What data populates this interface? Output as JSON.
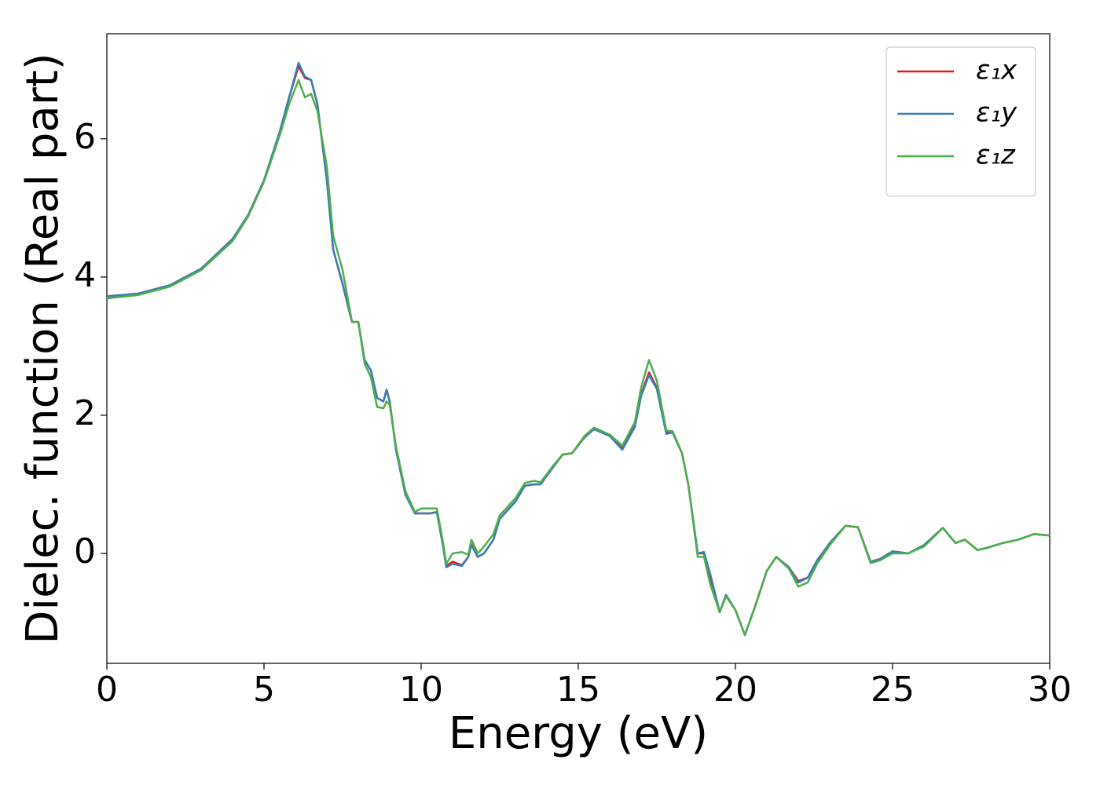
{
  "chart_data": {
    "type": "line",
    "xlabel": "Energy (eV)",
    "ylabel": "Dielec. function (Real part)",
    "x": [
      0,
      1,
      2,
      3,
      4,
      4.5,
      5,
      5.5,
      5.8,
      6.1,
      6.3,
      6.5,
      6.7,
      7.0,
      7.2,
      7.5,
      7.8,
      8.0,
      8.2,
      8.4,
      8.6,
      8.8,
      8.9,
      9.0,
      9.2,
      9.5,
      9.8,
      10.0,
      10.3,
      10.5,
      10.7,
      10.8,
      11.0,
      11.3,
      11.5,
      11.6,
      11.8,
      12.0,
      12.3,
      12.5,
      13.0,
      13.3,
      13.6,
      13.8,
      14.2,
      14.5,
      14.8,
      15.2,
      15.5,
      16.0,
      16.4,
      16.8,
      17.0,
      17.25,
      17.5,
      17.8,
      18.0,
      18.3,
      18.5,
      18.8,
      19.0,
      19.2,
      19.5,
      19.7,
      20.0,
      20.3,
      20.6,
      21.0,
      21.3,
      21.7,
      22.0,
      22.3,
      22.6,
      23.0,
      23.5,
      23.9,
      24.3,
      24.6,
      25.0,
      25.5,
      26.0,
      26.6,
      27.0,
      27.3,
      27.7,
      28.0,
      28.5,
      29.0,
      29.5,
      30.0
    ],
    "series": [
      {
        "name": "ε₁x",
        "color": "#e41a1c",
        "values": [
          3.72,
          3.76,
          3.88,
          4.12,
          4.55,
          4.9,
          5.4,
          6.1,
          6.6,
          7.05,
          6.88,
          6.85,
          6.5,
          5.4,
          4.4,
          3.9,
          3.35,
          3.35,
          2.8,
          2.65,
          2.25,
          2.2,
          2.37,
          2.2,
          1.5,
          0.85,
          0.58,
          0.58,
          0.58,
          0.6,
          0.1,
          -0.18,
          -0.12,
          -0.17,
          -0.05,
          0.13,
          -0.05,
          0.0,
          0.2,
          0.5,
          0.75,
          0.98,
          1.0,
          1.0,
          1.25,
          1.43,
          1.45,
          1.68,
          1.8,
          1.7,
          1.52,
          1.85,
          2.3,
          2.62,
          2.4,
          1.75,
          1.75,
          1.45,
          1.0,
          0.0,
          0.0,
          -0.4,
          -0.85,
          -0.6,
          -0.82,
          -1.18,
          -0.8,
          -0.25,
          -0.05,
          -0.2,
          -0.4,
          -0.35,
          -0.1,
          0.15,
          0.4,
          0.38,
          -0.12,
          -0.08,
          0.03,
          0.0,
          0.12,
          0.37,
          0.15,
          0.2,
          0.05,
          0.08,
          0.15,
          0.2,
          0.28,
          0.26
        ]
      },
      {
        "name": "ε₁y",
        "color": "#377eb8",
        "values": [
          3.72,
          3.76,
          3.88,
          4.12,
          4.55,
          4.9,
          5.4,
          6.1,
          6.6,
          7.1,
          6.9,
          6.85,
          6.5,
          5.4,
          4.4,
          3.9,
          3.35,
          3.35,
          2.8,
          2.65,
          2.25,
          2.2,
          2.37,
          2.2,
          1.5,
          0.85,
          0.58,
          0.58,
          0.58,
          0.6,
          0.1,
          -0.2,
          -0.15,
          -0.18,
          -0.05,
          0.12,
          -0.05,
          0.0,
          0.2,
          0.5,
          0.75,
          0.98,
          1.0,
          1.0,
          1.25,
          1.43,
          1.45,
          1.68,
          1.8,
          1.7,
          1.5,
          1.83,
          2.28,
          2.58,
          2.38,
          1.73,
          1.75,
          1.45,
          1.0,
          0.0,
          0.02,
          -0.3,
          -0.85,
          -0.6,
          -0.82,
          -1.18,
          -0.8,
          -0.25,
          -0.05,
          -0.2,
          -0.42,
          -0.35,
          -0.1,
          0.15,
          0.4,
          0.38,
          -0.12,
          -0.08,
          0.03,
          0.0,
          0.12,
          0.37,
          0.15,
          0.2,
          0.05,
          0.08,
          0.15,
          0.2,
          0.28,
          0.26
        ]
      },
      {
        "name": "ε₁z",
        "color": "#4daf4a",
        "values": [
          3.69,
          3.74,
          3.86,
          4.1,
          4.52,
          4.88,
          5.38,
          6.05,
          6.5,
          6.85,
          6.6,
          6.65,
          6.4,
          5.6,
          4.6,
          4.1,
          3.35,
          3.35,
          2.75,
          2.55,
          2.12,
          2.1,
          2.2,
          2.15,
          1.55,
          0.9,
          0.6,
          0.65,
          0.65,
          0.65,
          0.15,
          -0.15,
          0.0,
          0.02,
          -0.02,
          0.2,
          0.0,
          0.1,
          0.28,
          0.55,
          0.8,
          1.02,
          1.05,
          1.03,
          1.27,
          1.43,
          1.45,
          1.7,
          1.82,
          1.72,
          1.56,
          1.9,
          2.4,
          2.8,
          2.5,
          1.78,
          1.77,
          1.45,
          1.0,
          -0.05,
          -0.05,
          -0.45,
          -0.85,
          -0.62,
          -0.82,
          -1.18,
          -0.8,
          -0.25,
          -0.05,
          -0.22,
          -0.48,
          -0.42,
          -0.15,
          0.12,
          0.4,
          0.38,
          -0.14,
          -0.1,
          0.0,
          0.0,
          0.1,
          0.37,
          0.15,
          0.2,
          0.05,
          0.08,
          0.15,
          0.2,
          0.28,
          0.26
        ]
      }
    ],
    "xlim": [
      0,
      30
    ],
    "xticks": [
      0,
      5,
      10,
      15,
      20,
      25,
      30
    ],
    "ylim": [
      -1.59,
      7.52
    ],
    "yticks": [
      0,
      2,
      4,
      6
    ],
    "grid": false,
    "legend": "upper right"
  }
}
